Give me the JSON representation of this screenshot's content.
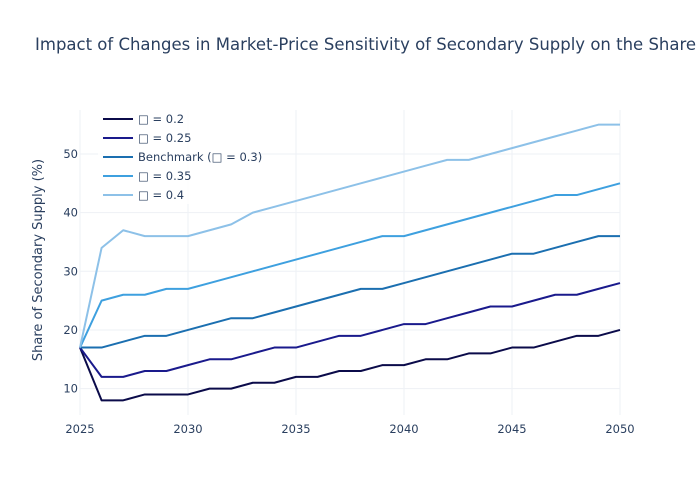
{
  "chart_data": {
    "type": "line",
    "title": "Impact of Changes in Market-Price Sensitivity of Secondary Supply on the Share of Secondary Supply",
    "xlabel": "",
    "ylabel": "Share of Secondary Supply (%)",
    "xlim": [
      2025,
      2050
    ],
    "ylim": [
      5.5,
      57.5
    ],
    "x_ticks": [
      2025,
      2030,
      2035,
      2040,
      2045,
      2050
    ],
    "y_ticks": [
      10,
      20,
      30,
      40,
      50
    ],
    "grid": true,
    "legend_position": "top-left",
    "x": [
      2025,
      2026,
      2027,
      2028,
      2029,
      2030,
      2031,
      2032,
      2033,
      2034,
      2035,
      2036,
      2037,
      2038,
      2039,
      2040,
      2041,
      2042,
      2043,
      2044,
      2045,
      2046,
      2047,
      2048,
      2049,
      2050
    ],
    "series": [
      {
        "name": "□ = 0.2",
        "color": "#0b0b4a",
        "values": [
          17,
          8,
          8,
          9,
          9,
          9,
          10,
          10,
          11,
          11,
          12,
          12,
          13,
          13,
          14,
          14,
          15,
          15,
          16,
          16,
          17,
          17,
          18,
          19,
          19,
          20
        ]
      },
      {
        "name": "□ = 0.25",
        "color": "#1a1a8c",
        "values": [
          17,
          12,
          12,
          13,
          13,
          14,
          15,
          15,
          16,
          17,
          17,
          18,
          19,
          19,
          20,
          21,
          21,
          22,
          23,
          24,
          24,
          25,
          26,
          26,
          27,
          28
        ]
      },
      {
        "name": "Benchmark (□ = 0.3)",
        "color": "#1b6fb0",
        "values": [
          17,
          17,
          18,
          19,
          19,
          20,
          21,
          22,
          22,
          23,
          24,
          25,
          26,
          27,
          27,
          28,
          29,
          30,
          31,
          32,
          33,
          33,
          34,
          35,
          36,
          36
        ]
      },
      {
        "name": "□ = 0.35",
        "color": "#3ea0df",
        "values": [
          17,
          25,
          26,
          26,
          27,
          27,
          28,
          29,
          30,
          31,
          32,
          33,
          34,
          35,
          36,
          36,
          37,
          38,
          39,
          40,
          41,
          42,
          43,
          43,
          44,
          45
        ]
      },
      {
        "name": "□ = 0.4",
        "color": "#8dc1e8",
        "values": [
          17,
          34,
          37,
          36,
          36,
          36,
          37,
          38,
          40,
          41,
          42,
          43,
          44,
          45,
          46,
          47,
          48,
          49,
          49,
          50,
          51,
          52,
          53,
          54,
          55,
          55
        ]
      }
    ]
  }
}
